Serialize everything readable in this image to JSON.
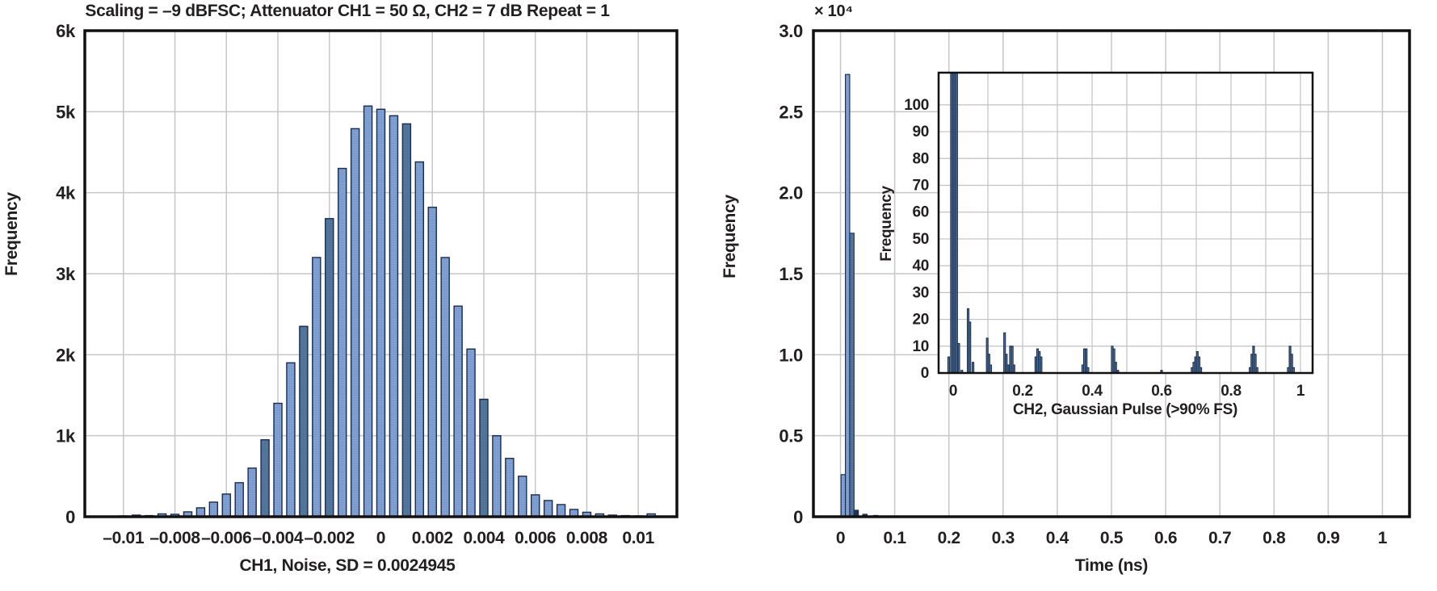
{
  "figure": {
    "background": "#ffffff"
  },
  "colors": {
    "background": "#ffffff",
    "text": "#231f20",
    "frame": "#111111",
    "grid": "#c7c7c7",
    "grid_inset": "#c2c2c2",
    "bar_fill": "#82a2d6",
    "bar_dot": "#5e80b4",
    "bar_fill_dark": "#54779f",
    "bar_dark_dot": "#3d5a7e",
    "bar_fill_darkest": "#24364f",
    "bar_stroke": "#1b2c49"
  },
  "chart_data": [
    {
      "name": "ch1-noise",
      "type": "bar",
      "title": "Scaling = –9 dBFSC; Attenuator CH1 = 50 Ω, CH2 = 7 dB Repeat = 1",
      "xlabel": "CH1, Noise, SD = 0.0024945",
      "ylabel": "Frequency",
      "xlim": [
        -0.0115,
        0.0115
      ],
      "ylim": [
        0,
        6000
      ],
      "grid": true,
      "legend": "none",
      "xticks": [
        {
          "v": -0.01,
          "l": "–0.01"
        },
        {
          "v": -0.008,
          "l": "–0.008"
        },
        {
          "v": -0.006,
          "l": "–0.006"
        },
        {
          "v": -0.004,
          "l": "–0.004"
        },
        {
          "v": -0.002,
          "l": "–0.002"
        },
        {
          "v": 0,
          "l": "0"
        },
        {
          "v": 0.002,
          "l": "0.002"
        },
        {
          "v": 0.004,
          "l": "0.004"
        },
        {
          "v": 0.006,
          "l": "0.006"
        },
        {
          "v": 0.008,
          "l": "0.008"
        },
        {
          "v": 0.01,
          "l": "0.01"
        }
      ],
      "yticks": [
        {
          "v": 0,
          "l": "0"
        },
        {
          "v": 1000,
          "l": "1k"
        },
        {
          "v": 2000,
          "l": "2k"
        },
        {
          "v": 3000,
          "l": "3k"
        },
        {
          "v": 4000,
          "l": "4k"
        },
        {
          "v": 5000,
          "l": "5k"
        },
        {
          "v": 6000,
          "l": "6k"
        }
      ],
      "bin_width": 0.0005,
      "bins": [
        [
          -0.0105,
          8
        ],
        [
          -0.01,
          10
        ],
        [
          -0.0095,
          20
        ],
        [
          -0.009,
          14
        ],
        [
          -0.0085,
          35
        ],
        [
          -0.008,
          30
        ],
        [
          -0.0075,
          60
        ],
        [
          -0.007,
          110
        ],
        [
          -0.0065,
          180
        ],
        [
          -0.006,
          280
        ],
        [
          -0.0055,
          420
        ],
        [
          -0.005,
          600
        ],
        [
          -0.0045,
          950,
          1
        ],
        [
          -0.004,
          1400
        ],
        [
          -0.0035,
          1900
        ],
        [
          -0.003,
          2350,
          1
        ],
        [
          -0.0025,
          3200
        ],
        [
          -0.002,
          3680,
          1
        ],
        [
          -0.0015,
          4300
        ],
        [
          -0.001,
          4790
        ],
        [
          -0.0005,
          5070
        ],
        [
          0,
          5030
        ],
        [
          0.0005,
          4950
        ],
        [
          0.001,
          4850,
          1
        ],
        [
          0.0015,
          4380
        ],
        [
          0.002,
          3820
        ],
        [
          0.0025,
          3200
        ],
        [
          0.003,
          2600
        ],
        [
          0.0035,
          2070
        ],
        [
          0.004,
          1450,
          1
        ],
        [
          0.0045,
          1000
        ],
        [
          0.005,
          720
        ],
        [
          0.0055,
          500
        ],
        [
          0.006,
          270
        ],
        [
          0.0065,
          200
        ],
        [
          0.007,
          150
        ],
        [
          0.0075,
          90
        ],
        [
          0.008,
          55
        ],
        [
          0.0085,
          35
        ],
        [
          0.009,
          20
        ],
        [
          0.0095,
          14
        ],
        [
          0.01,
          10
        ],
        [
          0.0105,
          35
        ]
      ]
    },
    {
      "name": "ch2-time",
      "type": "bar",
      "title": "",
      "xlabel": "Time (ns)",
      "ylabel": "Frequency",
      "y_multiplier": "× 10⁴",
      "xlim": [
        -0.05,
        1.05
      ],
      "ylim": [
        0,
        30000
      ],
      "grid": true,
      "legend": "none",
      "xticks": [
        {
          "v": 0,
          "l": "0"
        },
        {
          "v": 0.1,
          "l": "0.1"
        },
        {
          "v": 0.2,
          "l": "0.2"
        },
        {
          "v": 0.3,
          "l": "0.3"
        },
        {
          "v": 0.4,
          "l": "0.4"
        },
        {
          "v": 0.5,
          "l": "0.5"
        },
        {
          "v": 0.6,
          "l": "0.6"
        },
        {
          "v": 0.7,
          "l": "0.7"
        },
        {
          "v": 0.8,
          "l": "0.8"
        },
        {
          "v": 0.9,
          "l": "0.9"
        },
        {
          "v": 1,
          "l": "1"
        }
      ],
      "yticks": [
        {
          "v": 0,
          "l": "0"
        },
        {
          "v": 5000,
          "l": "0.5"
        },
        {
          "v": 10000,
          "l": "1.0"
        },
        {
          "v": 15000,
          "l": "1.5"
        },
        {
          "v": 20000,
          "l": "2.0"
        },
        {
          "v": 25000,
          "l": "2.5"
        },
        {
          "v": 30000,
          "l": "3.0"
        }
      ],
      "bin_width": 0.008,
      "bins": [
        [
          0.005,
          2600
        ],
        [
          0.013,
          27300
        ],
        [
          0.021,
          17500,
          1
        ],
        [
          0.029,
          400,
          2
        ],
        [
          0.045,
          150,
          2
        ],
        [
          0.065,
          80,
          2
        ]
      ]
    },
    {
      "name": "ch2-inset",
      "type": "bar",
      "title": "",
      "xlabel": "CH2, Gaussian Pulse (>90% FS)",
      "ylabel": "Frequency",
      "xlim": [
        -0.042,
        1.035
      ],
      "ylim": [
        0,
        112
      ],
      "grid": true,
      "legend": "none",
      "xticks": [
        {
          "v": 0,
          "l": "0"
        },
        {
          "v": 0.2,
          "l": "0.2"
        },
        {
          "v": 0.4,
          "l": "0.4"
        },
        {
          "v": 0.6,
          "l": "0.6"
        },
        {
          "v": 0.8,
          "l": "0.8"
        },
        {
          "v": 1,
          "l": "1"
        }
      ],
      "xgrid": [
        0,
        0.1,
        0.2,
        0.3,
        0.4,
        0.5,
        0.6,
        0.7,
        0.8,
        0.9,
        1.0
      ],
      "yticks": [
        {
          "v": 0,
          "l": "0"
        },
        {
          "v": 10,
          "l": "10"
        },
        {
          "v": 20,
          "l": "20"
        },
        {
          "v": 30,
          "l": "30"
        },
        {
          "v": 40,
          "l": "40"
        },
        {
          "v": 50,
          "l": "50"
        },
        {
          "v": 60,
          "l": "60"
        },
        {
          "v": 70,
          "l": "70"
        },
        {
          "v": 80,
          "l": "80"
        },
        {
          "v": 90,
          "l": "90"
        },
        {
          "v": 100,
          "l": "100"
        }
      ],
      "bin_width": 0.005,
      "bins": [
        [
          -0.013,
          6
        ],
        [
          -0.005,
          112
        ],
        [
          0,
          112
        ],
        [
          0.005,
          112
        ],
        [
          0.01,
          112
        ],
        [
          0.016,
          11
        ],
        [
          0.025,
          1
        ],
        [
          0.043,
          24
        ],
        [
          0.048,
          19
        ],
        [
          0.057,
          4
        ],
        [
          0.098,
          13
        ],
        [
          0.103,
          7
        ],
        [
          0.108,
          3
        ],
        [
          0.148,
          15
        ],
        [
          0.153,
          7
        ],
        [
          0.158,
          3
        ],
        [
          0.165,
          10
        ],
        [
          0.17,
          10
        ],
        [
          0.175,
          3
        ],
        [
          0.238,
          6
        ],
        [
          0.243,
          9
        ],
        [
          0.248,
          8
        ],
        [
          0.253,
          6
        ],
        [
          0.373,
          3
        ],
        [
          0.378,
          9
        ],
        [
          0.383,
          9
        ],
        [
          0.388,
          2
        ],
        [
          0.458,
          10
        ],
        [
          0.463,
          9
        ],
        [
          0.468,
          4
        ],
        [
          0.474,
          1
        ],
        [
          0.6,
          1
        ],
        [
          0.688,
          2
        ],
        [
          0.693,
          4
        ],
        [
          0.698,
          6
        ],
        [
          0.703,
          8
        ],
        [
          0.708,
          6
        ],
        [
          0.713,
          2
        ],
        [
          0.855,
          2
        ],
        [
          0.86,
          7
        ],
        [
          0.865,
          10
        ],
        [
          0.87,
          7
        ],
        [
          0.875,
          2
        ],
        [
          0.965,
          2
        ],
        [
          0.97,
          10
        ],
        [
          0.975,
          7
        ],
        [
          0.98,
          2
        ]
      ]
    }
  ]
}
